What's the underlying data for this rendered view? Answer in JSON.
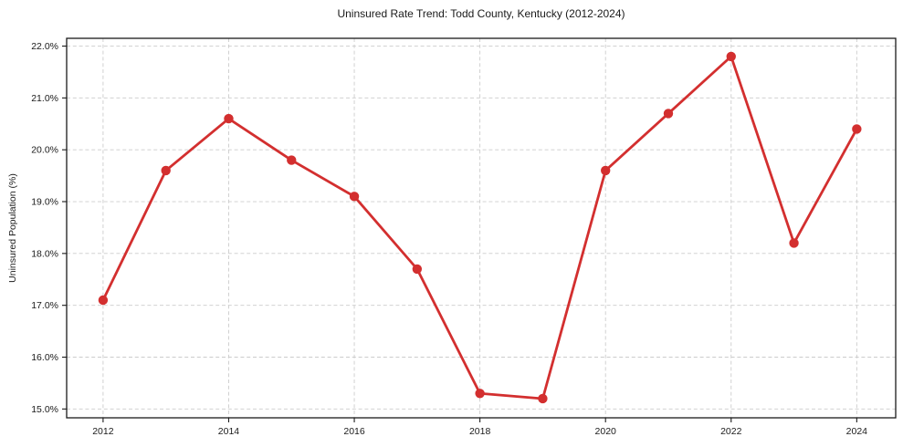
{
  "chart_data": {
    "type": "line",
    "title": "Uninsured Rate Trend: Todd County, Kentucky (2012-2024)",
    "xlabel": "",
    "ylabel": "Uninsured Population (%)",
    "x": [
      2012,
      2013,
      2014,
      2015,
      2016,
      2017,
      2018,
      2019,
      2020,
      2021,
      2022,
      2023,
      2024
    ],
    "series": [
      {
        "name": "Uninsured Rate",
        "values": [
          17.1,
          19.6,
          20.6,
          19.8,
          19.1,
          17.7,
          15.3,
          15.2,
          19.6,
          20.7,
          21.8,
          18.2,
          20.4
        ]
      }
    ],
    "x_ticks": [
      {
        "value": 2012,
        "label": "2012"
      },
      {
        "value": 2014,
        "label": "2014"
      },
      {
        "value": 2016,
        "label": "2016"
      },
      {
        "value": 2018,
        "label": "2018"
      },
      {
        "value": 2020,
        "label": "2020"
      },
      {
        "value": 2022,
        "label": "2022"
      },
      {
        "value": 2024,
        "label": "2024"
      }
    ],
    "y_ticks": [
      {
        "value": 15.0,
        "label": "15.0%"
      },
      {
        "value": 16.0,
        "label": "16.0%"
      },
      {
        "value": 17.0,
        "label": "17.0%"
      },
      {
        "value": 18.0,
        "label": "18.0%"
      },
      {
        "value": 19.0,
        "label": "19.0%"
      },
      {
        "value": 20.0,
        "label": "20.0%"
      },
      {
        "value": 21.0,
        "label": "21.0%"
      },
      {
        "value": 22.0,
        "label": "22.0%"
      }
    ],
    "xlim": [
      2011.42,
      2024.62
    ],
    "ylim": [
      14.83,
      22.15
    ],
    "grid": true,
    "legend": null,
    "colors": {
      "line": "#d32f2f",
      "grid": "#cccccc",
      "spine": "#1a1a1a",
      "text": "#1a1a1a"
    }
  }
}
